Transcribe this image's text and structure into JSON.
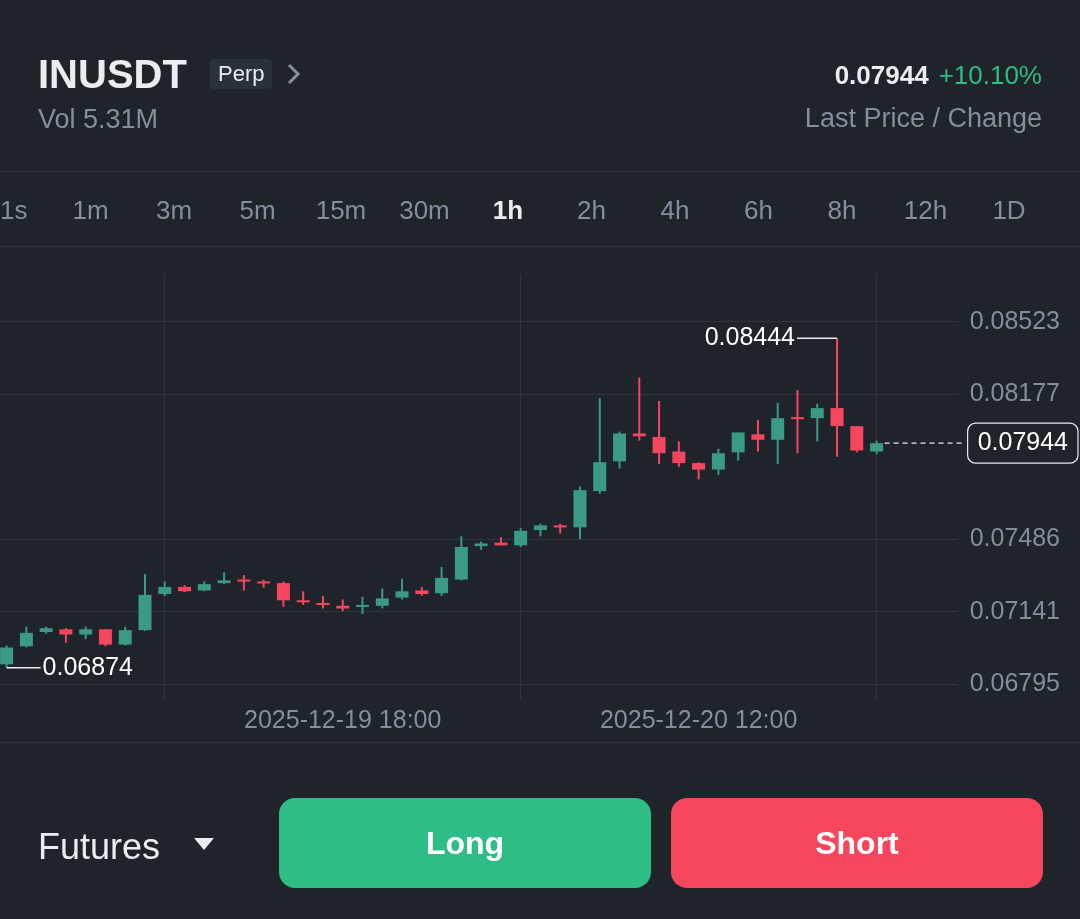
{
  "chart_data": {
    "type": "candlestick",
    "title": "INUSDT",
    "subtitle": "Vol 5.31M",
    "x": [
      "2025-12-19T01:00",
      "2025-12-19T02:00",
      "2025-12-19T03:00",
      "2025-12-19T04:00",
      "2025-12-19T05:00",
      "2025-12-19T06:00",
      "2025-12-19T07:00",
      "2025-12-19T08:00",
      "2025-12-19T09:00",
      "2025-12-19T10:00",
      "2025-12-19T11:00",
      "2025-12-19T12:00",
      "2025-12-19T13:00",
      "2025-12-19T14:00",
      "2025-12-19T15:00",
      "2025-12-19T16:00",
      "2025-12-19T17:00",
      "2025-12-19T18:00",
      "2025-12-19T19:00",
      "2025-12-19T20:00",
      "2025-12-19T21:00",
      "2025-12-19T22:00",
      "2025-12-19T23:00",
      "2025-12-20T00:00",
      "2025-12-20T01:00",
      "2025-12-20T02:00",
      "2025-12-20T03:00",
      "2025-12-20T04:00",
      "2025-12-20T05:00",
      "2025-12-20T06:00",
      "2025-12-20T07:00",
      "2025-12-20T08:00",
      "2025-12-20T09:00",
      "2025-12-20T10:00",
      "2025-12-20T11:00",
      "2025-12-20T12:00",
      "2025-12-20T13:00",
      "2025-12-20T14:00",
      "2025-12-20T15:00",
      "2025-12-20T16:00",
      "2025-12-20T17:00",
      "2025-12-20T18:00",
      "2025-12-20T19:00",
      "2025-12-20T20:00",
      "2025-12-20T21:00"
    ],
    "ohlc": [
      [
        0.0689,
        0.0698,
        0.06874,
        0.0697
      ],
      [
        0.06976,
        0.0707,
        0.06971,
        0.0704
      ],
      [
        0.07044,
        0.0707,
        0.07036,
        0.07062
      ],
      [
        0.07057,
        0.07062,
        0.06993,
        0.07032
      ],
      [
        0.07032,
        0.0707,
        0.0701,
        0.07057
      ],
      [
        0.07057,
        0.07057,
        0.06976,
        0.06984
      ],
      [
        0.06984,
        0.0707,
        0.0698,
        0.07053
      ],
      [
        0.07053,
        0.0732,
        0.07049,
        0.07221
      ],
      [
        0.07225,
        0.07285,
        0.07216,
        0.07259
      ],
      [
        0.07259,
        0.07268,
        0.07234,
        0.07238
      ],
      [
        0.07242,
        0.07285,
        0.07238,
        0.07272
      ],
      [
        0.07277,
        0.07328,
        0.07272,
        0.0729
      ],
      [
        0.07294,
        0.07315,
        0.07242,
        0.07285
      ],
      [
        0.07285,
        0.07294,
        0.07255,
        0.07277
      ],
      [
        0.07277,
        0.07285,
        0.07165,
        0.07195
      ],
      [
        0.07195,
        0.07238,
        0.07173,
        0.07191
      ],
      [
        0.07182,
        0.07216,
        0.07156,
        0.07173
      ],
      [
        0.07169,
        0.07199,
        0.07143,
        0.07156
      ],
      [
        0.07165,
        0.07212,
        0.0713,
        0.07173
      ],
      [
        0.07169,
        0.07251,
        0.07156,
        0.07204
      ],
      [
        0.07208,
        0.07298,
        0.07199,
        0.07238
      ],
      [
        0.07242,
        0.07259,
        0.07216,
        0.07225
      ],
      [
        0.07229,
        0.07354,
        0.07216,
        0.07302
      ],
      [
        0.07294,
        0.075,
        0.07289,
        0.07449
      ],
      [
        0.07453,
        0.07475,
        0.07436,
        0.07466
      ],
      [
        0.0747,
        0.07496,
        0.07457,
        0.07457
      ],
      [
        0.07457,
        0.07539,
        0.07449,
        0.07526
      ],
      [
        0.0753,
        0.0756,
        0.075,
        0.07552
      ],
      [
        0.07552,
        0.0756,
        0.07513,
        0.07543
      ],
      [
        0.07543,
        0.07737,
        0.07487,
        0.0772
      ],
      [
        0.07715,
        0.08158,
        0.07702,
        0.07853
      ],
      [
        0.07857,
        0.07999,
        0.07823,
        0.0799
      ],
      [
        0.0799,
        0.08257,
        0.07956,
        0.07977
      ],
      [
        0.07973,
        0.08145,
        0.07844,
        0.07896
      ],
      [
        0.07904,
        0.07952,
        0.07831,
        0.07849
      ],
      [
        0.07849,
        0.07853,
        0.07771,
        0.07818
      ],
      [
        0.07818,
        0.07917,
        0.07793,
        0.07896
      ],
      [
        0.079,
        0.07995,
        0.07861,
        0.07995
      ],
      [
        0.07986,
        0.08055,
        0.07904,
        0.0796
      ],
      [
        0.0796,
        0.08136,
        0.07844,
        0.08063
      ],
      [
        0.08068,
        0.08197,
        0.07896,
        0.08059
      ],
      [
        0.08063,
        0.08132,
        0.07952,
        0.08111
      ],
      [
        0.08111,
        0.08444,
        0.07879,
        0.08025
      ],
      [
        0.08025,
        0.08025,
        0.079,
        0.07909
      ],
      [
        0.07904,
        0.07956,
        0.07891,
        0.07944
      ]
    ],
    "xlim": [
      "2025-12-19T00:40",
      "2025-12-21T01:06"
    ],
    "xticks": [
      {
        "value": "2025-12-19T18:00",
        "label": "2025-12-19 18:00"
      },
      {
        "value": "2025-12-20T12:00",
        "label": "2025-12-20 12:00"
      }
    ],
    "ylim": [
      0.0672,
      0.0875
    ],
    "yticks": [
      0.06795,
      0.07141,
      0.07486,
      0.08177,
      0.08523
    ],
    "grid": true,
    "ref_lines": [
      {
        "axis": "y",
        "value": 0.07944,
        "label": "0.07944",
        "line_style": "dashed"
      }
    ],
    "annotations": [
      {
        "text": "0.08444",
        "x": "2025-12-20T19:00",
        "y": 0.08444
      },
      {
        "text": "0.06874",
        "x": "2025-12-19T01:00",
        "y": 0.06874
      },
      "Perp",
      "0.07944",
      "+10.10%",
      "Last Price / Change",
      "1s",
      "1m",
      "3m",
      "5m",
      "15m",
      "30m",
      "1h",
      "2h",
      "4h",
      "6h",
      "8h",
      "12h",
      "1D",
      "Futures",
      "Long",
      "Short"
    ]
  }
}
